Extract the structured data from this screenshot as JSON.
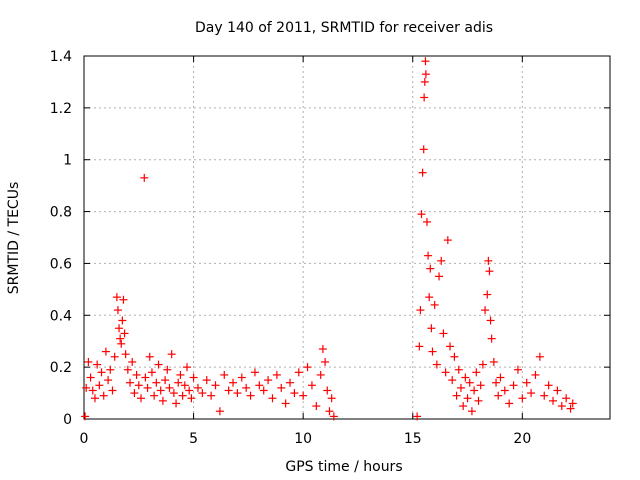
{
  "chart_data": {
    "type": "scatter",
    "title": "Day 140 of 2011, SRMTID for receiver adis",
    "xlabel": "GPS time / hours",
    "ylabel": "SRMTID / TECUs",
    "xlim": [
      0,
      24
    ],
    "ylim": [
      0,
      1.4
    ],
    "xticks": [
      0,
      5,
      10,
      15,
      20
    ],
    "xtick_labels": [
      "0",
      "5",
      "10",
      "15",
      "20"
    ],
    "yticks": [
      0,
      0.2,
      0.4,
      0.6,
      0.8,
      1.0,
      1.2,
      1.4
    ],
    "ytick_labels": [
      "0",
      "0.2",
      "0.4",
      "0.6",
      "0.8",
      "1",
      "1.2",
      "1.4"
    ],
    "grid": true,
    "marker": "+",
    "series": [
      {
        "name": "SRMTID",
        "color": "#ff0000",
        "points": [
          [
            0.05,
            0.01
          ],
          [
            0.1,
            0.12
          ],
          [
            0.2,
            0.22
          ],
          [
            0.3,
            0.16
          ],
          [
            0.4,
            0.11
          ],
          [
            0.5,
            0.08
          ],
          [
            0.6,
            0.21
          ],
          [
            0.7,
            0.13
          ],
          [
            0.8,
            0.18
          ],
          [
            0.9,
            0.09
          ],
          [
            1.0,
            0.26
          ],
          [
            1.1,
            0.15
          ],
          [
            1.2,
            0.19
          ],
          [
            1.3,
            0.11
          ],
          [
            1.4,
            0.24
          ],
          [
            1.5,
            0.47
          ],
          [
            1.55,
            0.42
          ],
          [
            1.6,
            0.35
          ],
          [
            1.65,
            0.31
          ],
          [
            1.7,
            0.29
          ],
          [
            1.75,
            0.38
          ],
          [
            1.8,
            0.46
          ],
          [
            1.85,
            0.33
          ],
          [
            1.9,
            0.25
          ],
          [
            2.0,
            0.19
          ],
          [
            2.1,
            0.14
          ],
          [
            2.2,
            0.22
          ],
          [
            2.3,
            0.1
          ],
          [
            2.4,
            0.17
          ],
          [
            2.5,
            0.13
          ],
          [
            2.6,
            0.08
          ],
          [
            2.75,
            0.93
          ],
          [
            2.8,
            0.16
          ],
          [
            2.9,
            0.12
          ],
          [
            3.0,
            0.24
          ],
          [
            3.1,
            0.18
          ],
          [
            3.2,
            0.09
          ],
          [
            3.3,
            0.14
          ],
          [
            3.4,
            0.21
          ],
          [
            3.5,
            0.11
          ],
          [
            3.6,
            0.07
          ],
          [
            3.7,
            0.15
          ],
          [
            3.8,
            0.19
          ],
          [
            3.9,
            0.12
          ],
          [
            4.0,
            0.25
          ],
          [
            4.1,
            0.1
          ],
          [
            4.2,
            0.06
          ],
          [
            4.3,
            0.14
          ],
          [
            4.4,
            0.17
          ],
          [
            4.5,
            0.09
          ],
          [
            4.6,
            0.13
          ],
          [
            4.7,
            0.2
          ],
          [
            4.8,
            0.11
          ],
          [
            4.9,
            0.08
          ],
          [
            5.0,
            0.16
          ],
          [
            5.2,
            0.12
          ],
          [
            5.4,
            0.1
          ],
          [
            5.6,
            0.15
          ],
          [
            5.8,
            0.09
          ],
          [
            6.0,
            0.13
          ],
          [
            6.2,
            0.03
          ],
          [
            6.4,
            0.17
          ],
          [
            6.6,
            0.11
          ],
          [
            6.8,
            0.14
          ],
          [
            7.0,
            0.1
          ],
          [
            7.2,
            0.16
          ],
          [
            7.4,
            0.12
          ],
          [
            7.6,
            0.09
          ],
          [
            7.8,
            0.18
          ],
          [
            8.0,
            0.13
          ],
          [
            8.2,
            0.11
          ],
          [
            8.4,
            0.15
          ],
          [
            8.6,
            0.08
          ],
          [
            8.8,
            0.17
          ],
          [
            9.0,
            0.12
          ],
          [
            9.2,
            0.06
          ],
          [
            9.4,
            0.14
          ],
          [
            9.6,
            0.1
          ],
          [
            9.8,
            0.18
          ],
          [
            10.0,
            0.09
          ],
          [
            10.2,
            0.2
          ],
          [
            10.4,
            0.13
          ],
          [
            10.6,
            0.05
          ],
          [
            10.8,
            0.17
          ],
          [
            10.9,
            0.27
          ],
          [
            11.0,
            0.22
          ],
          [
            11.1,
            0.11
          ],
          [
            11.2,
            0.03
          ],
          [
            11.3,
            0.08
          ],
          [
            11.4,
            0.01
          ],
          [
            15.2,
            0.01
          ],
          [
            15.3,
            0.28
          ],
          [
            15.35,
            0.42
          ],
          [
            15.4,
            0.79
          ],
          [
            15.45,
            0.95
          ],
          [
            15.5,
            1.04
          ],
          [
            15.52,
            1.24
          ],
          [
            15.55,
            1.3
          ],
          [
            15.58,
            1.38
          ],
          [
            15.6,
            1.33
          ],
          [
            15.65,
            0.76
          ],
          [
            15.7,
            0.63
          ],
          [
            15.75,
            0.47
          ],
          [
            15.8,
            0.58
          ],
          [
            15.85,
            0.35
          ],
          [
            15.9,
            0.26
          ],
          [
            16.0,
            0.44
          ],
          [
            16.1,
            0.21
          ],
          [
            16.2,
            0.55
          ],
          [
            16.3,
            0.61
          ],
          [
            16.4,
            0.33
          ],
          [
            16.5,
            0.18
          ],
          [
            16.6,
            0.69
          ],
          [
            16.7,
            0.28
          ],
          [
            16.8,
            0.15
          ],
          [
            16.9,
            0.24
          ],
          [
            17.0,
            0.09
          ],
          [
            17.1,
            0.19
          ],
          [
            17.2,
            0.12
          ],
          [
            17.3,
            0.05
          ],
          [
            17.4,
            0.16
          ],
          [
            17.5,
            0.08
          ],
          [
            17.6,
            0.14
          ],
          [
            17.7,
            0.03
          ],
          [
            17.8,
            0.11
          ],
          [
            17.9,
            0.18
          ],
          [
            18.0,
            0.07
          ],
          [
            18.1,
            0.13
          ],
          [
            18.2,
            0.21
          ],
          [
            18.3,
            0.42
          ],
          [
            18.4,
            0.48
          ],
          [
            18.45,
            0.61
          ],
          [
            18.5,
            0.57
          ],
          [
            18.55,
            0.38
          ],
          [
            18.6,
            0.31
          ],
          [
            18.7,
            0.22
          ],
          [
            18.8,
            0.14
          ],
          [
            18.9,
            0.09
          ],
          [
            19.0,
            0.16
          ],
          [
            19.2,
            0.11
          ],
          [
            19.4,
            0.06
          ],
          [
            19.6,
            0.13
          ],
          [
            19.8,
            0.19
          ],
          [
            20.0,
            0.08
          ],
          [
            20.2,
            0.14
          ],
          [
            20.4,
            0.1
          ],
          [
            20.6,
            0.17
          ],
          [
            20.8,
            0.24
          ],
          [
            21.0,
            0.09
          ],
          [
            21.2,
            0.13
          ],
          [
            21.4,
            0.07
          ],
          [
            21.6,
            0.11
          ],
          [
            21.8,
            0.05
          ],
          [
            22.0,
            0.08
          ],
          [
            22.2,
            0.04
          ],
          [
            22.3,
            0.06
          ]
        ]
      }
    ]
  }
}
